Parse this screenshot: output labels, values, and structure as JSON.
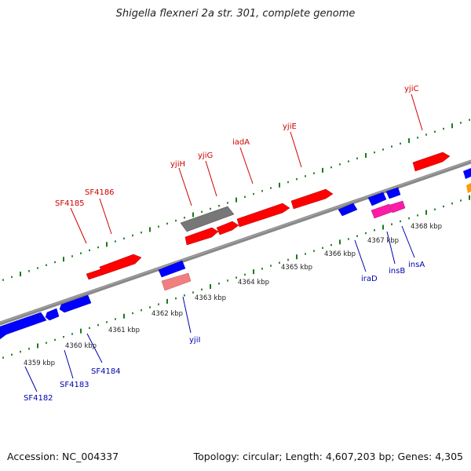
{
  "title": "Shigella flexneri 2a str. 301, complete genome",
  "footer": {
    "accession": "Accession: NC_004337",
    "summary": "Topology: circular; Length: 4,607,203 bp; Genes: 4,305"
  },
  "colors": {
    "forward_gene": "#ff0000",
    "reverse_gene": "#0000ff",
    "pseudo_gene": "#808080",
    "trna": "#ff69b4",
    "mobile": "#f08080",
    "backbone": "#888888",
    "tick": "#1a7a1a",
    "label_forward": "#d10000",
    "label_reverse": "#0000b0"
  },
  "scale": {
    "kbp_labels": [
      "4359 kbp",
      "4360 kbp",
      "4361 kbp",
      "4362 kbp",
      "4363 kbp",
      "4364 kbp",
      "4365 kbp",
      "4366 kbp",
      "4367 kbp",
      "4368 kbp"
    ]
  },
  "genes_labeled": {
    "upper": [
      "SF4185",
      "SF4186",
      "yjiH",
      "yjiG",
      "iadA",
      "yjiE",
      "yjiC"
    ],
    "lower": [
      "SF4182",
      "SF4183",
      "SF4184",
      "yjiI",
      "iraD",
      "insB",
      "insA"
    ]
  }
}
